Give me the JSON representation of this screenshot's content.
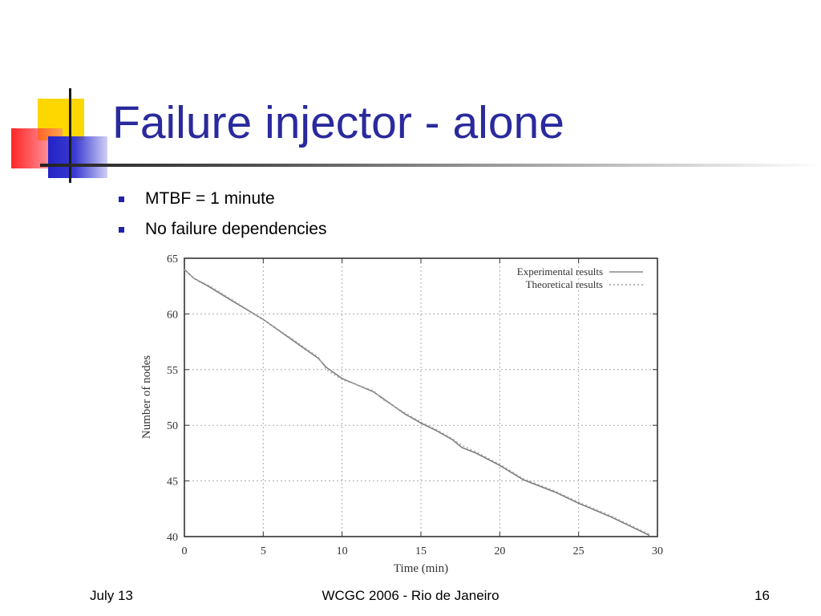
{
  "slide": {
    "title": "Failure injector - alone",
    "bullets": [
      "MTBF = 1 minute",
      "No failure dependencies"
    ]
  },
  "footer": {
    "left": "July 13",
    "center": "WCGC 2006 - Rio de Janeiro",
    "right": "16"
  },
  "colors": {
    "title": "#2a2a9e",
    "bullet": "#2222aa",
    "deco_yellow": "#ffd700",
    "deco_red": "#ff0000",
    "deco_blue": "#2323c8"
  },
  "chart_data": {
    "type": "line",
    "title": "",
    "xlabel": "Time (min)",
    "ylabel": "Number of nodes",
    "xlim": [
      0,
      30
    ],
    "ylim": [
      40,
      65
    ],
    "xticks": [
      0,
      5,
      10,
      15,
      20,
      25,
      30
    ],
    "yticks": [
      40,
      45,
      50,
      55,
      60,
      65
    ],
    "grid": true,
    "legend": "top-right",
    "series": [
      {
        "name": "Experimental results",
        "style": "solid",
        "x": [
          0,
          0.6,
          1.5,
          3,
          5,
          7,
          8.5,
          9,
          10,
          12,
          12.5,
          14,
          15,
          16,
          17,
          17.6,
          18.5,
          20,
          21.5,
          23.5,
          25,
          27,
          29.5
        ],
        "y": [
          64,
          63.2,
          62.5,
          61.2,
          59.5,
          57.5,
          56,
          55.2,
          54.2,
          53,
          52.5,
          51,
          50.2,
          49.5,
          48.7,
          48,
          47.5,
          46.4,
          45.1,
          44,
          43,
          41.8,
          40.1
        ]
      },
      {
        "name": "Theoretical results",
        "style": "dotted",
        "x": [
          0,
          0.6,
          1.5,
          3,
          5,
          7,
          8.5,
          9,
          10,
          12,
          12.5,
          14,
          15,
          16,
          17,
          17.6,
          18.5,
          20,
          21.5,
          23.5,
          25,
          27,
          29.5
        ],
        "y": [
          64,
          63.2,
          62.6,
          61.3,
          59.5,
          57.6,
          56.1,
          55.0,
          54.1,
          53.1,
          52.4,
          51.1,
          50.3,
          49.6,
          48.8,
          48.2,
          47.6,
          46.5,
          45.2,
          44.1,
          43.1,
          41.9,
          40.2
        ]
      }
    ]
  }
}
